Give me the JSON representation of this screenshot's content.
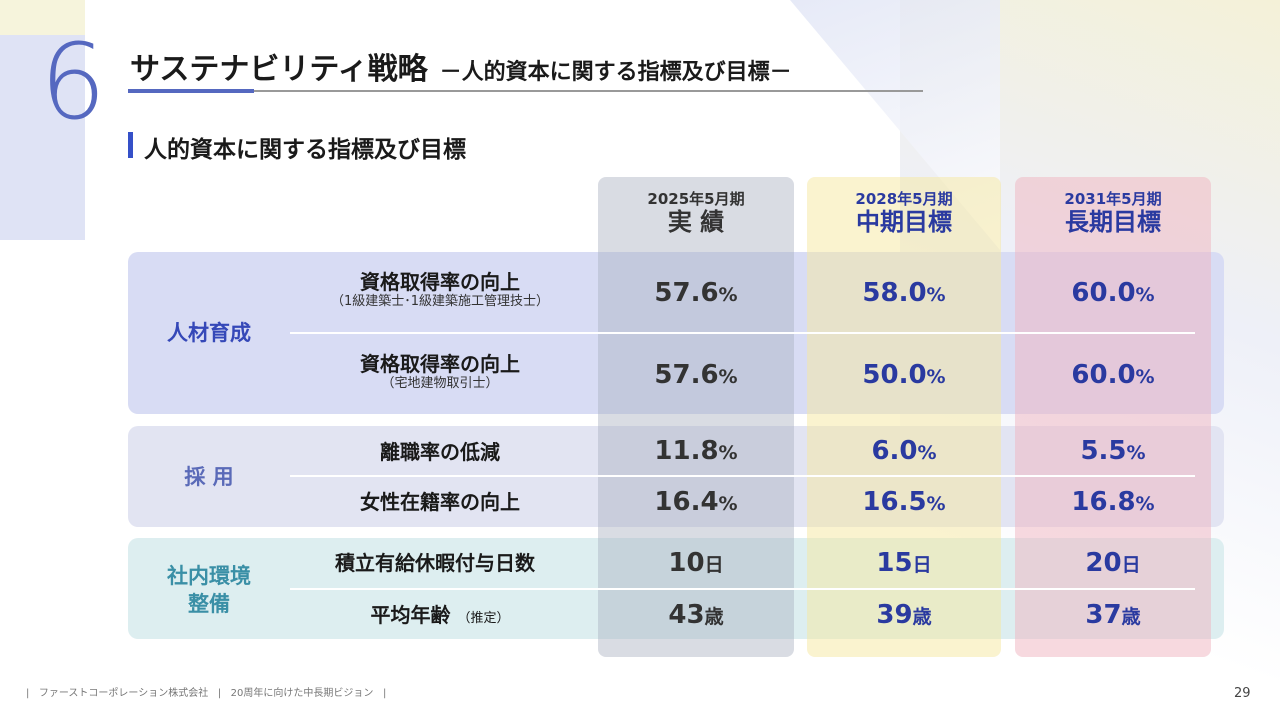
{
  "header": {
    "section_number": "6",
    "title": "サステナビリティ戦略",
    "subtitle": "－人的資本に関する指標及び目標－"
  },
  "section_heading": "人的資本に関する指標及び目標",
  "columns": [
    {
      "period": "2025年5月期",
      "label": "実 績",
      "color": "#333333"
    },
    {
      "period": "2028年5月期",
      "label": "中期目標",
      "color": "#2a3aa0"
    },
    {
      "period": "2031年5月期",
      "label": "長期目標",
      "color": "#2a3aa0"
    }
  ],
  "groups": [
    {
      "category": "人材育成",
      "rows": [
        {
          "metric": "資格取得率の向上",
          "note": "（1級建築士･1級建築施工管理技士）",
          "values": [
            [
              "57.6",
              "%"
            ],
            [
              "58.0",
              "%"
            ],
            [
              "60.0",
              "%"
            ]
          ]
        },
        {
          "metric": "資格取得率の向上",
          "note": "（宅地建物取引士）",
          "values": [
            [
              "57.6",
              "%"
            ],
            [
              "50.0",
              "%"
            ],
            [
              "60.0",
              "%"
            ]
          ]
        }
      ]
    },
    {
      "category": "採 用",
      "rows": [
        {
          "metric": "離職率の低減",
          "note": "",
          "values": [
            [
              "11.8",
              "%"
            ],
            [
              "6.0",
              "%"
            ],
            [
              "5.5",
              "%"
            ]
          ]
        },
        {
          "metric": "女性在籍率の向上",
          "note": "",
          "values": [
            [
              "16.4",
              "%"
            ],
            [
              "16.5",
              "%"
            ],
            [
              "16.8",
              "%"
            ]
          ]
        }
      ]
    },
    {
      "category": "社内環境整備",
      "category_lines": [
        "社内環境",
        "整備"
      ],
      "rows": [
        {
          "metric": "積立有給休暇付与日数",
          "note": "",
          "values": [
            [
              "10",
              "日"
            ],
            [
              "15",
              "日"
            ],
            [
              "20",
              "日"
            ]
          ]
        },
        {
          "metric": "平均年齢",
          "note": "（推定）",
          "values": [
            [
              "43",
              "歳"
            ],
            [
              "39",
              "歳"
            ],
            [
              "37",
              "歳"
            ]
          ]
        }
      ]
    }
  ],
  "footer": {
    "company": "ファーストコーポレーション株式会社",
    "vision": "20周年に向けた中長期ビジョン",
    "page": "29"
  },
  "colors": {
    "accent": "#5568c0",
    "band1": "#d8dcf4",
    "band2": "#e2e4f2",
    "band3": "#ddeef0",
    "col1": "#d4d8de",
    "col2": "#f7f1cc",
    "col3": "#f6d6dc"
  }
}
